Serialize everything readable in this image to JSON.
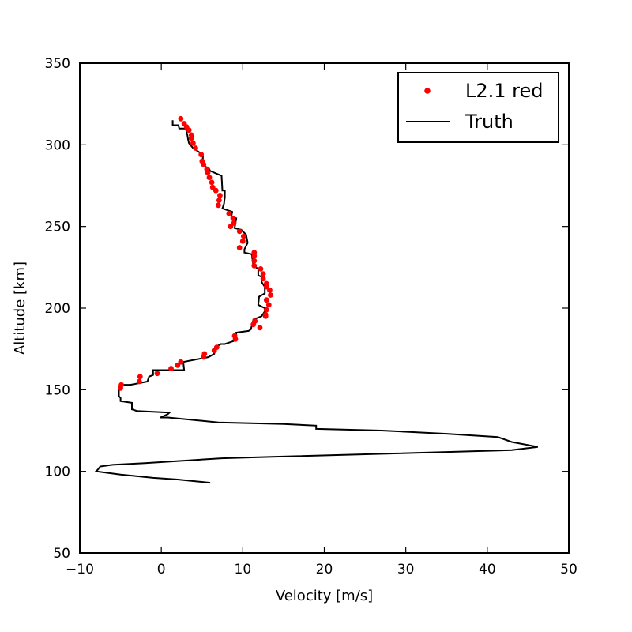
{
  "chart_data": {
    "type": "line",
    "title": "",
    "xlabel": "Velocity [m/s]",
    "ylabel": "Altitude [km]",
    "xlim": [
      -10,
      50
    ],
    "ylim": [
      50,
      350
    ],
    "xticks": [
      -10,
      0,
      10,
      20,
      30,
      40,
      50
    ],
    "yticks": [
      50,
      100,
      150,
      200,
      250,
      300,
      350
    ],
    "xtick_labels": [
      "−10",
      "0",
      "10",
      "20",
      "30",
      "40",
      "50"
    ],
    "ytick_labels": [
      "50",
      "100",
      "150",
      "200",
      "250",
      "300",
      "350"
    ],
    "grid": false,
    "legend_position": "top-right",
    "series": [
      {
        "name": "L2.1 red",
        "style": "markers",
        "color": "#ff0000",
        "points": [
          [
            2.4,
            316
          ],
          [
            2.8,
            313
          ],
          [
            3.1,
            311
          ],
          [
            3.4,
            309
          ],
          [
            3.7,
            306
          ],
          [
            3.7,
            304
          ],
          [
            3.9,
            301
          ],
          [
            4.2,
            298
          ],
          [
            4.9,
            294
          ],
          [
            5.0,
            290
          ],
          [
            5.2,
            288
          ],
          [
            5.6,
            285
          ],
          [
            5.7,
            283
          ],
          [
            5.9,
            280
          ],
          [
            6.2,
            277
          ],
          [
            6.3,
            274
          ],
          [
            6.7,
            272
          ],
          [
            7.2,
            269
          ],
          [
            7.1,
            266
          ],
          [
            7.0,
            263
          ],
          [
            8.3,
            258
          ],
          [
            8.8,
            255
          ],
          [
            8.9,
            252
          ],
          [
            8.5,
            250
          ],
          [
            9.6,
            247
          ],
          [
            10.1,
            244
          ],
          [
            10.0,
            241
          ],
          [
            9.6,
            237
          ],
          [
            11.4,
            234
          ],
          [
            11.4,
            232
          ],
          [
            11.4,
            229
          ],
          [
            11.4,
            226
          ],
          [
            12.2,
            224
          ],
          [
            12.5,
            221
          ],
          [
            12.5,
            218
          ],
          [
            12.9,
            215
          ],
          [
            12.9,
            213
          ],
          [
            13.3,
            211
          ],
          [
            13.4,
            208
          ],
          [
            12.9,
            205
          ],
          [
            13.2,
            202
          ],
          [
            12.9,
            199
          ],
          [
            12.8,
            196
          ],
          [
            12.8,
            195
          ],
          [
            11.5,
            192
          ],
          [
            11.3,
            190
          ],
          [
            12.1,
            188
          ],
          [
            9.0,
            183
          ],
          [
            9.1,
            181
          ],
          [
            6.8,
            176
          ],
          [
            6.5,
            174
          ],
          [
            5.3,
            172
          ],
          [
            5.2,
            170
          ],
          [
            2.4,
            167
          ],
          [
            2.0,
            165
          ],
          [
            1.2,
            163
          ],
          [
            -0.5,
            160
          ],
          [
            -2.6,
            158
          ],
          [
            -2.7,
            155
          ],
          [
            -4.9,
            153
          ],
          [
            -5.0,
            151
          ]
        ]
      },
      {
        "name": "Truth",
        "style": "line",
        "color": "#000000",
        "points": [
          [
            1.4,
            315
          ],
          [
            1.4,
            312
          ],
          [
            2.1,
            312
          ],
          [
            2.2,
            310
          ],
          [
            3.0,
            310
          ],
          [
            3.2,
            306
          ],
          [
            3.3,
            303
          ],
          [
            3.4,
            301
          ],
          [
            3.9,
            298
          ],
          [
            4.8,
            295
          ],
          [
            5.1,
            293
          ],
          [
            5.1,
            287
          ],
          [
            5.8,
            286
          ],
          [
            6.0,
            284
          ],
          [
            7.4,
            281
          ],
          [
            7.5,
            272
          ],
          [
            7.8,
            272
          ],
          [
            7.8,
            268
          ],
          [
            7.7,
            264
          ],
          [
            7.5,
            261
          ],
          [
            8.7,
            259
          ],
          [
            8.6,
            256
          ],
          [
            9.2,
            255
          ],
          [
            9.0,
            249
          ],
          [
            9.8,
            248
          ],
          [
            10.4,
            245
          ],
          [
            10.6,
            240
          ],
          [
            10.2,
            236
          ],
          [
            10.2,
            234
          ],
          [
            11.1,
            233
          ],
          [
            11.3,
            226
          ],
          [
            11.9,
            224
          ],
          [
            11.9,
            220
          ],
          [
            12.4,
            219
          ],
          [
            12.3,
            216
          ],
          [
            12.7,
            213
          ],
          [
            12.7,
            209
          ],
          [
            12.0,
            207
          ],
          [
            11.9,
            202
          ],
          [
            12.7,
            200
          ],
          [
            12.7,
            198
          ],
          [
            12.3,
            195
          ],
          [
            11.3,
            193
          ],
          [
            11.0,
            187
          ],
          [
            10.7,
            186
          ],
          [
            9.2,
            185
          ],
          [
            9.2,
            181
          ],
          [
            9.0,
            180
          ],
          [
            7.8,
            178
          ],
          [
            7.3,
            178
          ],
          [
            6.6,
            176
          ],
          [
            6.5,
            172
          ],
          [
            5.8,
            170
          ],
          [
            2.7,
            167
          ],
          [
            2.8,
            162
          ],
          [
            -1.0,
            162
          ],
          [
            -1.0,
            159
          ],
          [
            -1.5,
            158
          ],
          [
            -1.7,
            155
          ],
          [
            -3.8,
            153
          ],
          [
            -4.8,
            153
          ],
          [
            -5.2,
            151
          ],
          [
            -5.2,
            146
          ],
          [
            -5.0,
            145
          ],
          [
            -5.0,
            143
          ],
          [
            -3.6,
            142
          ],
          [
            -3.6,
            138
          ],
          [
            -3.0,
            137
          ],
          [
            1.0,
            136
          ],
          [
            0.8,
            135
          ],
          [
            -0.1,
            133
          ],
          [
            0.8,
            133
          ],
          [
            7.0,
            130
          ],
          [
            15.0,
            129
          ],
          [
            19.0,
            128
          ],
          [
            19.0,
            126
          ],
          [
            27.0,
            125
          ],
          [
            35.0,
            123
          ],
          [
            41.3,
            121
          ],
          [
            43.0,
            118
          ],
          [
            46.2,
            115
          ],
          [
            43.0,
            113
          ],
          [
            29.0,
            111
          ],
          [
            14.0,
            109
          ],
          [
            7.4,
            108
          ],
          [
            -2.0,
            105
          ],
          [
            -6.0,
            104
          ],
          [
            -7.5,
            103
          ],
          [
            -7.8,
            101
          ],
          [
            -8.0,
            100
          ],
          [
            -5.0,
            98
          ],
          [
            -1.0,
            96
          ],
          [
            2.0,
            95
          ],
          [
            6.0,
            93
          ]
        ]
      }
    ]
  }
}
